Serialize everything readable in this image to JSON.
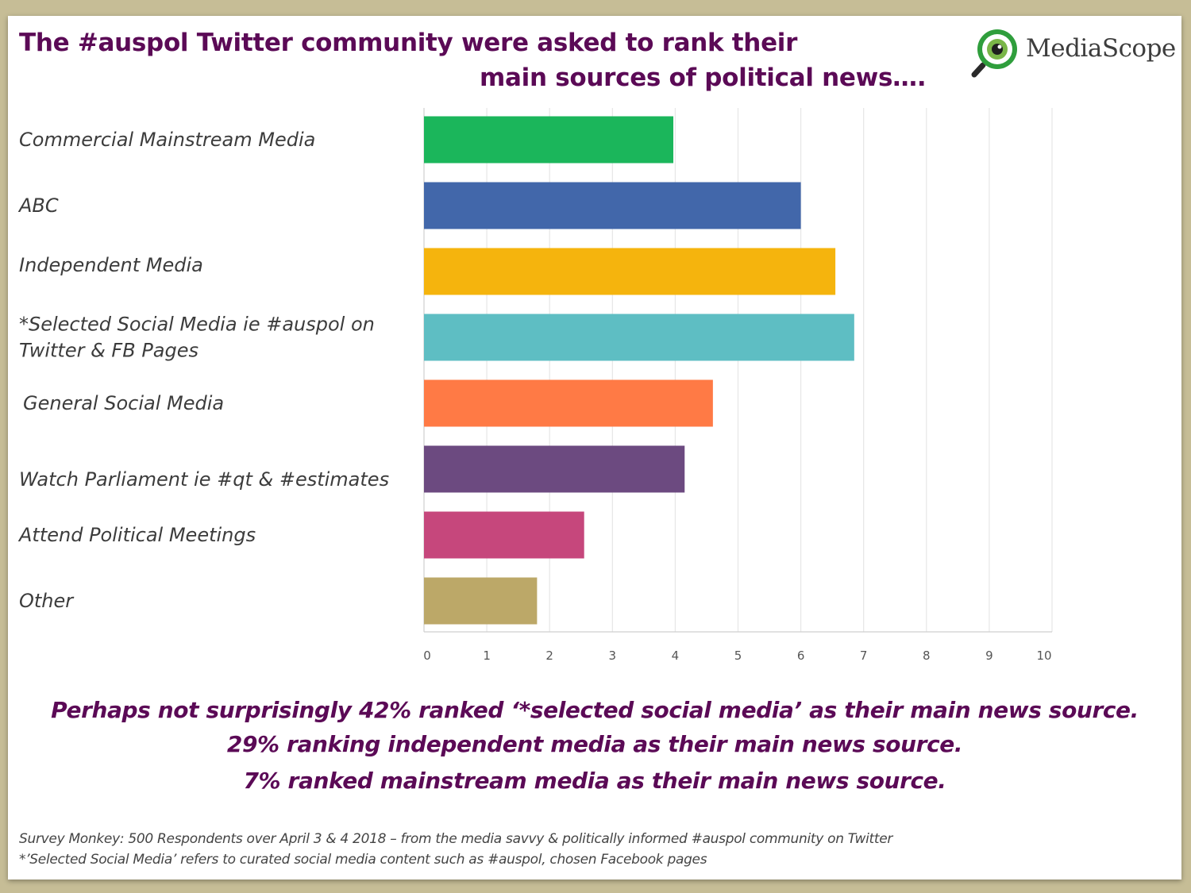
{
  "header": {
    "title_line1": "The #auspol Twitter community were asked to rank their",
    "title_line2": "main sources of political news….",
    "title_color": "#5b0a56"
  },
  "logo": {
    "text": "MediaScope",
    "icon": "magnifier-eye-icon",
    "colors": {
      "ring": "#2f9e3c",
      "eye": "#7ab648",
      "pupil": "#1e1e1e"
    }
  },
  "chart_data": {
    "type": "bar",
    "orientation": "horizontal",
    "categories": [
      "Commercial Mainstream Media",
      "ABC",
      "Independent Media",
      "*Selected Social Media ie #auspol on Twitter & FB Pages",
      "General Social Media",
      "Watch Parliament ie #qt & #estimates",
      "Attend Political Meetings",
      "Other"
    ],
    "category_lines": [
      [
        "Commercial Mainstream Media"
      ],
      [
        "ABC"
      ],
      [
        "Independent Media"
      ],
      [
        "*Selected Social Media ie #auspol on",
        "Twitter & FB Pages"
      ],
      [
        "General Social Media"
      ],
      [
        "Watch Parliament ie #qt & #estimates"
      ],
      [
        "Attend Political Meetings"
      ],
      [
        "Other"
      ]
    ],
    "values": [
      3.97,
      6.0,
      6.55,
      6.85,
      4.6,
      4.15,
      2.55,
      1.8
    ],
    "colors": [
      "#1bb65b",
      "#4267aa",
      "#f5b40d",
      "#5ebec3",
      "#ff7a45",
      "#6c4a80",
      "#c6477c",
      "#bca868"
    ],
    "xlim": [
      0,
      10
    ],
    "xticks": [
      0,
      1,
      2,
      3,
      4,
      5,
      6,
      7,
      8,
      9,
      10
    ],
    "grid": true,
    "legend": "none",
    "title": "",
    "xlabel": "",
    "ylabel": ""
  },
  "notes": {
    "line1": "Perhaps not surprisingly 42% ranked ‘*selected social media’ as their main news source.",
    "line2": "29% ranking independent media as their main news source.",
    "line3": "7% ranked mainstream media as their main news source."
  },
  "footer": {
    "line1": "Survey Monkey: 500 Respondents over April 3 & 4 2018 – from the media savvy & politically informed #auspol community on Twitter",
    "line2": "*’Selected Social Media’ refers to curated social media content such as #auspol, chosen Facebook pages"
  }
}
